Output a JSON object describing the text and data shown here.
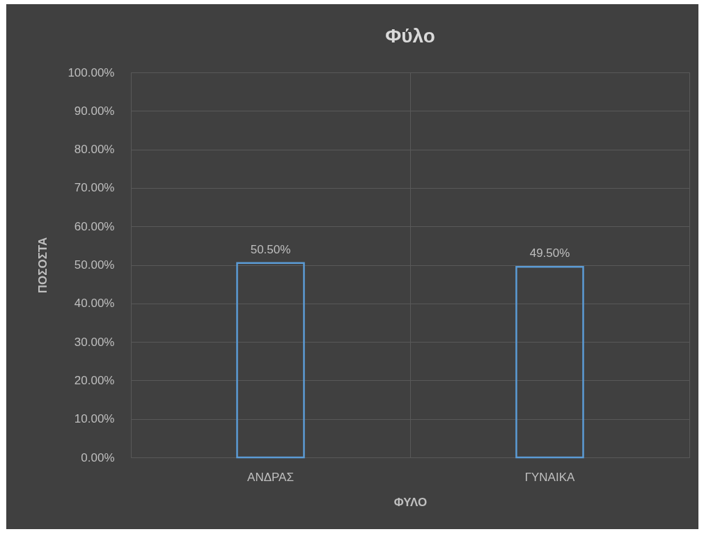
{
  "chart_data": {
    "type": "bar",
    "title": "Φύλο",
    "xlabel": "ΦΥΛΟ",
    "ylabel": "ΠΟΣΟΣΤΑ",
    "categories": [
      "ΑΝΔΡΑΣ",
      "ΓΥΝΑΙΚΑ"
    ],
    "values": [
      50.5,
      49.5
    ],
    "value_labels": [
      "50.50%",
      "49.50%"
    ],
    "color": "#5b9bd5",
    "ylim": [
      0,
      100
    ],
    "yticks": [
      {
        "value": 0,
        "label": "0.00%"
      },
      {
        "value": 10,
        "label": "10.00%"
      },
      {
        "value": 20,
        "label": "20.00%"
      },
      {
        "value": 30,
        "label": "30.00%"
      },
      {
        "value": 40,
        "label": "40.00%"
      },
      {
        "value": 50,
        "label": "50.00%"
      },
      {
        "value": 60,
        "label": "60.00%"
      },
      {
        "value": 70,
        "label": "70.00%"
      },
      {
        "value": 80,
        "label": "80.00%"
      },
      {
        "value": 90,
        "label": "90.00%"
      },
      {
        "value": 100,
        "label": "100.00%"
      }
    ],
    "grid": true
  }
}
